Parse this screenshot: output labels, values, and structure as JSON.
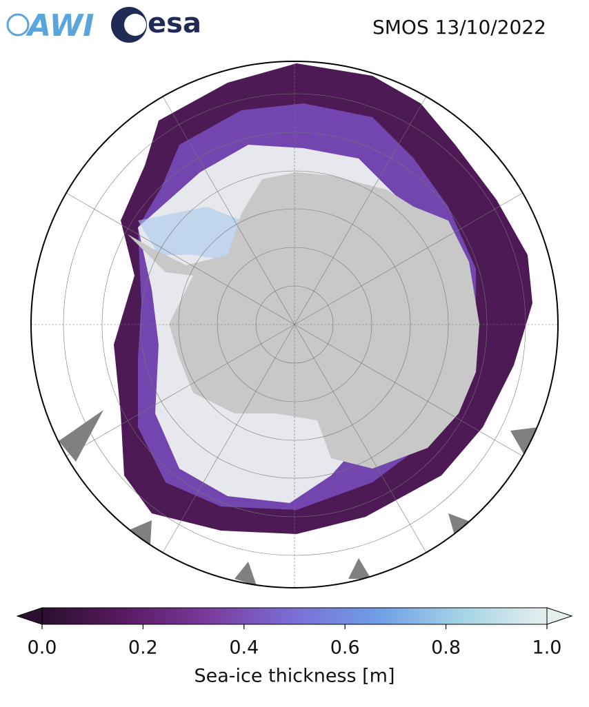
{
  "header": {
    "logos": [
      "AWI",
      "esa"
    ],
    "title": "SMOS 13/10/2022"
  },
  "colorbar": {
    "label": "Sea-ice thickness [m]",
    "lim": [
      0,
      1
    ],
    "ticks": [
      {
        "value": 0,
        "label": "0.0"
      },
      {
        "value": 0.2,
        "label": "0.2"
      },
      {
        "value": 0.4,
        "label": "0.4"
      },
      {
        "value": 0.6,
        "label": "0.6"
      },
      {
        "value": 0.8,
        "label": "0.8"
      },
      {
        "value": 1,
        "label": "1.0"
      }
    ],
    "colors": [
      "#2a0f2e",
      "#5a1a63",
      "#7a3c9e",
      "#7a6fd6",
      "#6f9ee6",
      "#a6d4e6",
      "#e6eeee"
    ]
  }
}
